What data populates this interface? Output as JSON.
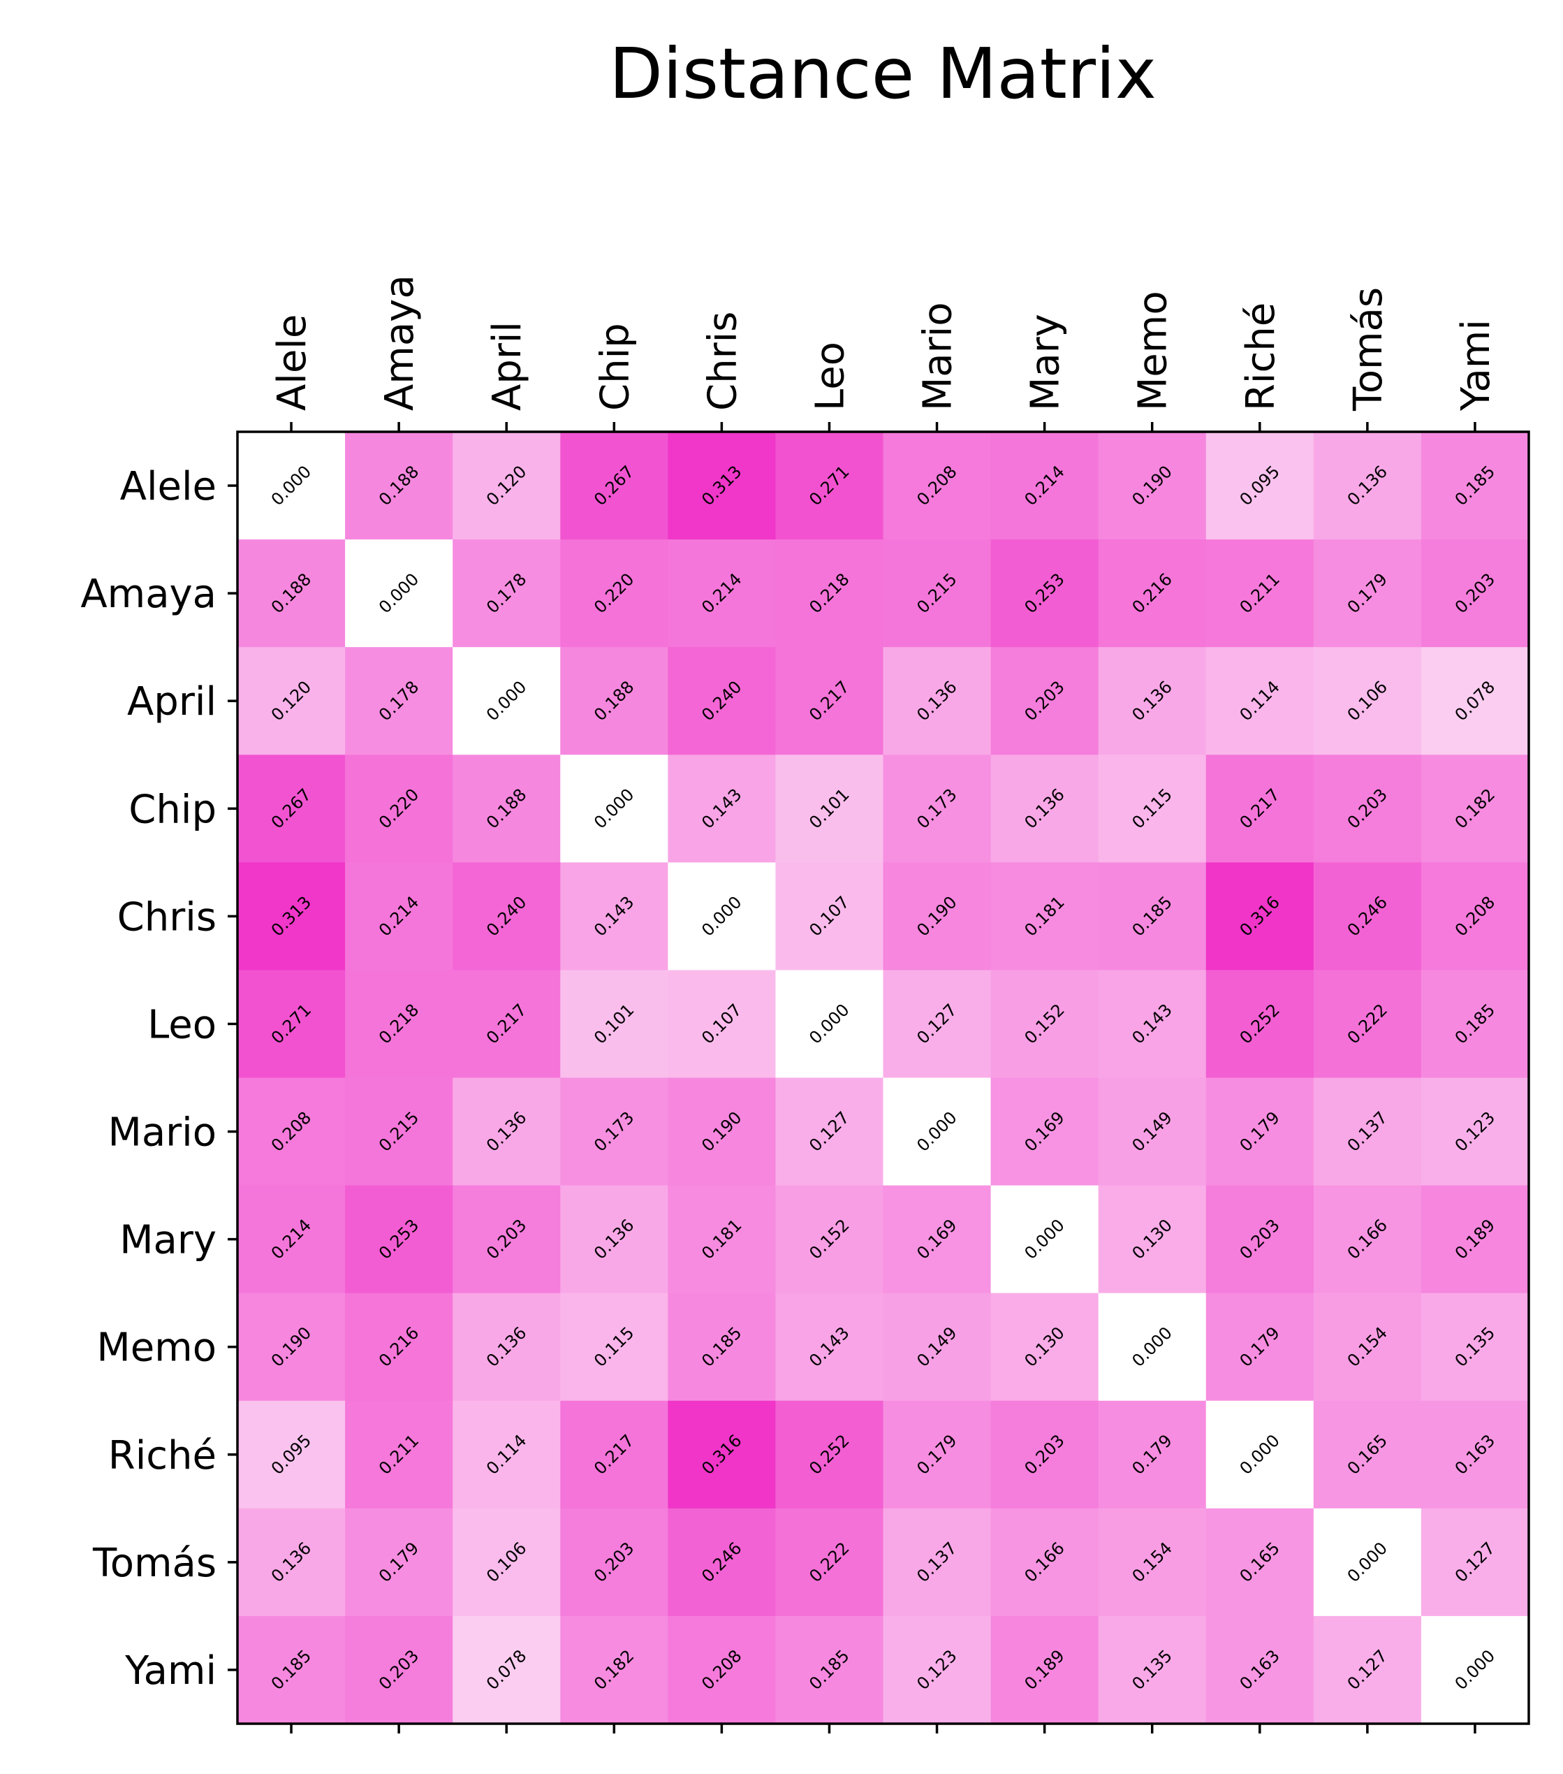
{
  "chart_data": {
    "type": "heatmap",
    "title": "Distance Matrix",
    "labels": [
      "Alele",
      "Amaya",
      "April",
      "Chip",
      "Chris",
      "Leo",
      "Mario",
      "Mary",
      "Memo",
      "Riché",
      "Tomás",
      "Yami"
    ],
    "colormap": {
      "low": "#ffffff",
      "high": "#f035c8"
    },
    "value_range": [
      0,
      0.316
    ],
    "matrix": [
      [
        0.0,
        0.188,
        0.12,
        0.267,
        0.313,
        0.271,
        0.208,
        0.214,
        0.19,
        0.095,
        0.136,
        0.185
      ],
      [
        0.188,
        0.0,
        0.178,
        0.22,
        0.214,
        0.218,
        0.215,
        0.253,
        0.216,
        0.211,
        0.179,
        0.203
      ],
      [
        0.12,
        0.178,
        0.0,
        0.188,
        0.24,
        0.217,
        0.136,
        0.203,
        0.136,
        0.114,
        0.106,
        0.078
      ],
      [
        0.267,
        0.22,
        0.188,
        0.0,
        0.143,
        0.101,
        0.173,
        0.136,
        0.115,
        0.217,
        0.203,
        0.182
      ],
      [
        0.313,
        0.214,
        0.24,
        0.143,
        0.0,
        0.107,
        0.19,
        0.181,
        0.185,
        0.316,
        0.246,
        0.208
      ],
      [
        0.271,
        0.218,
        0.217,
        0.101,
        0.107,
        0.0,
        0.127,
        0.152,
        0.143,
        0.252,
        0.222,
        0.185
      ],
      [
        0.208,
        0.215,
        0.136,
        0.173,
        0.19,
        0.127,
        0.0,
        0.169,
        0.149,
        0.179,
        0.137,
        0.123
      ],
      [
        0.214,
        0.253,
        0.203,
        0.136,
        0.181,
        0.152,
        0.169,
        0.0,
        0.13,
        0.203,
        0.166,
        0.189
      ],
      [
        0.19,
        0.216,
        0.136,
        0.115,
        0.185,
        0.143,
        0.149,
        0.13,
        0.0,
        0.179,
        0.154,
        0.135
      ],
      [
        0.095,
        0.211,
        0.114,
        0.217,
        0.316,
        0.252,
        0.179,
        0.203,
        0.179,
        0.0,
        0.165,
        0.163
      ],
      [
        0.136,
        0.179,
        0.106,
        0.203,
        0.246,
        0.222,
        0.137,
        0.166,
        0.154,
        0.165,
        0.0,
        0.127
      ],
      [
        0.185,
        0.203,
        0.078,
        0.182,
        0.208,
        0.185,
        0.123,
        0.189,
        0.135,
        0.163,
        0.127,
        0.0
      ]
    ],
    "value_format": "3 decimals",
    "x_tick_position": "top",
    "x_tick_rotation": "vertical",
    "cell_label_rotation": "diagonal",
    "grid": false
  }
}
